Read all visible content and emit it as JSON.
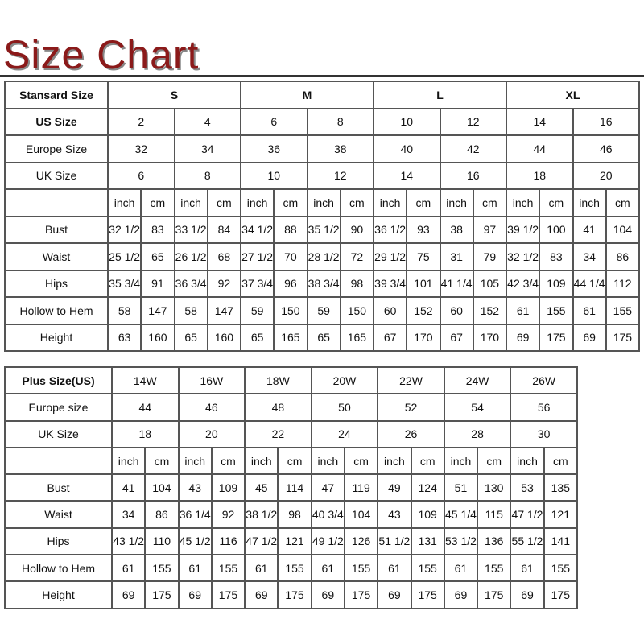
{
  "title": "Size Chart",
  "title_color": "#8b1a1a",
  "standard": {
    "header": {
      "label": "Stansard Size",
      "groups": [
        "S",
        "M",
        "L",
        "XL"
      ]
    },
    "size_rows": [
      {
        "label": "US Size",
        "values": [
          "2",
          "4",
          "6",
          "8",
          "10",
          "12",
          "14",
          "16"
        ]
      },
      {
        "label": "Europe Size",
        "values": [
          "32",
          "34",
          "36",
          "38",
          "40",
          "42",
          "44",
          "46"
        ]
      },
      {
        "label": "UK Size",
        "values": [
          "6",
          "8",
          "10",
          "12",
          "14",
          "16",
          "18",
          "20"
        ]
      }
    ],
    "unit_labels": [
      "inch",
      "cm"
    ],
    "measurements": [
      {
        "label": "Bust",
        "values": [
          "32 1/2",
          "83",
          "33 1/2",
          "84",
          "34 1/2",
          "88",
          "35 1/2",
          "90",
          "36 1/2",
          "93",
          "38",
          "97",
          "39 1/2",
          "100",
          "41",
          "104"
        ]
      },
      {
        "label": "Waist",
        "values": [
          "25 1/2",
          "65",
          "26 1/2",
          "68",
          "27 1/2",
          "70",
          "28 1/2",
          "72",
          "29 1/2",
          "75",
          "31",
          "79",
          "32 1/2",
          "83",
          "34",
          "86"
        ]
      },
      {
        "label": "Hips",
        "values": [
          "35 3/4",
          "91",
          "36 3/4",
          "92",
          "37 3/4",
          "96",
          "38 3/4",
          "98",
          "39 3/4",
          "101",
          "41 1/4",
          "105",
          "42 3/4",
          "109",
          "44 1/4",
          "112"
        ]
      },
      {
        "label": "Hollow to Hem",
        "values": [
          "58",
          "147",
          "58",
          "147",
          "59",
          "150",
          "59",
          "150",
          "60",
          "152",
          "60",
          "152",
          "61",
          "155",
          "61",
          "155"
        ]
      },
      {
        "label": "Height",
        "values": [
          "63",
          "160",
          "65",
          "160",
          "65",
          "165",
          "65",
          "165",
          "67",
          "170",
          "67",
          "170",
          "69",
          "175",
          "69",
          "175"
        ]
      }
    ]
  },
  "plus": {
    "header": {
      "label": "Plus Size(US)",
      "values": [
        "14W",
        "16W",
        "18W",
        "20W",
        "22W",
        "24W",
        "26W"
      ]
    },
    "size_rows": [
      {
        "label": "Europe size",
        "values": [
          "44",
          "46",
          "48",
          "50",
          "52",
          "54",
          "56"
        ]
      },
      {
        "label": "UK Size",
        "values": [
          "18",
          "20",
          "22",
          "24",
          "26",
          "28",
          "30"
        ]
      }
    ],
    "unit_labels": [
      "inch",
      "cm"
    ],
    "measurements": [
      {
        "label": "Bust",
        "values": [
          "41",
          "104",
          "43",
          "109",
          "45",
          "114",
          "47",
          "119",
          "49",
          "124",
          "51",
          "130",
          "53",
          "135"
        ]
      },
      {
        "label": "Waist",
        "values": [
          "34",
          "86",
          "36 1/4",
          "92",
          "38 1/2",
          "98",
          "40 3/4",
          "104",
          "43",
          "109",
          "45 1/4",
          "115",
          "47 1/2",
          "121"
        ]
      },
      {
        "label": "Hips",
        "values": [
          "43 1/2",
          "110",
          "45 1/2",
          "116",
          "47 1/2",
          "121",
          "49 1/2",
          "126",
          "51 1/2",
          "131",
          "53 1/2",
          "136",
          "55 1/2",
          "141"
        ]
      },
      {
        "label": "Hollow to Hem",
        "values": [
          "61",
          "155",
          "61",
          "155",
          "61",
          "155",
          "61",
          "155",
          "61",
          "155",
          "61",
          "155",
          "61",
          "155"
        ]
      },
      {
        "label": "Height",
        "values": [
          "69",
          "175",
          "69",
          "175",
          "69",
          "175",
          "69",
          "175",
          "69",
          "175",
          "69",
          "175",
          "69",
          "175"
        ]
      }
    ]
  }
}
